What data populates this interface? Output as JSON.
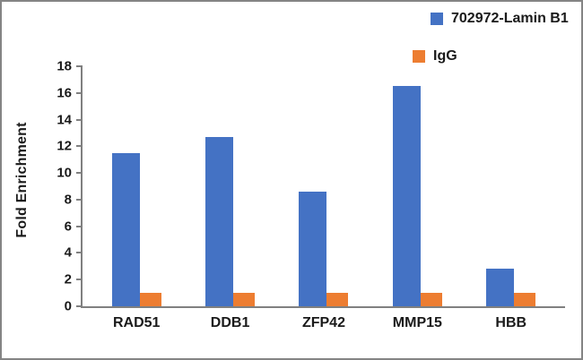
{
  "chart_data": {
    "type": "bar",
    "title": "",
    "xlabel": "",
    "ylabel": "Fold Enrichment",
    "categories": [
      "RAD51",
      "DDB1",
      "ZFP42",
      "MMP15",
      "HBB"
    ],
    "series": [
      {
        "name": "702972-Lamin B1",
        "color": "#4472C4",
        "values": [
          11.5,
          12.7,
          8.6,
          16.5,
          2.8
        ]
      },
      {
        "name": "IgG",
        "color": "#ED7D31",
        "values": [
          1,
          1,
          1,
          1,
          1
        ]
      }
    ],
    "ylim": [
      0,
      18
    ],
    "ytick_step": 2,
    "yticks": [
      0,
      2,
      4,
      6,
      8,
      10,
      12,
      14,
      16,
      18
    ],
    "grid": false,
    "legend_position": "top-right",
    "text_color": "#1a1a1a",
    "axis_color": "#808080"
  }
}
